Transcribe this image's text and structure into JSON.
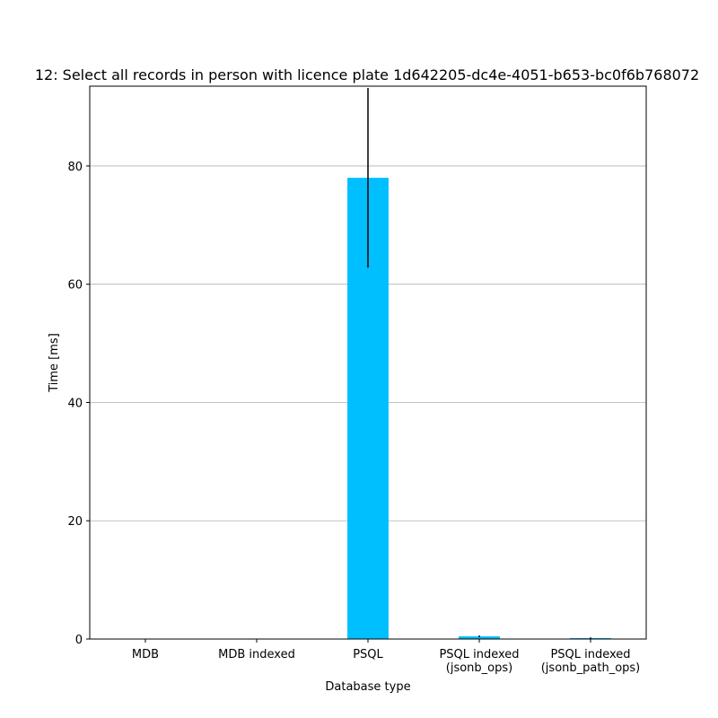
{
  "chart_data": {
    "type": "bar",
    "title": "12: Select all records in person with licence plate 1d642205-dc4e-4051-b653-bc0f6b768072",
    "xlabel": "Database type",
    "ylabel": "Time [ms]",
    "categories": [
      [
        "MDB"
      ],
      [
        "MDB indexed"
      ],
      [
        "PSQL"
      ],
      [
        "PSQL indexed",
        "(jsonb_ops)"
      ],
      [
        "PSQL indexed",
        "(jsonb_path_ops)"
      ]
    ],
    "values": [
      0.02,
      0.02,
      78.0,
      0.45,
      0.15
    ],
    "errors": [
      0.01,
      0.01,
      15.2,
      0.15,
      0.12
    ],
    "ylim": [
      0,
      93.5
    ],
    "yticks": [
      0,
      20,
      40,
      60,
      80
    ],
    "grid": "y",
    "bar_color": "#00bfff",
    "error_color": "#000000"
  }
}
